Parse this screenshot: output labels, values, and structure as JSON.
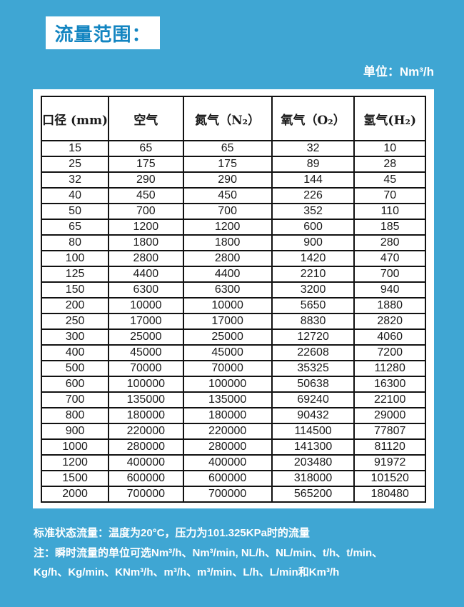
{
  "title": "流量范围：",
  "unit_label": "单位：Nm³/h",
  "table": {
    "headers": [
      "口径 (mm)",
      "空气",
      "氮气（N₂）",
      "氧气（O₂）",
      "氢气(H₂)"
    ],
    "rows": [
      [
        "15",
        "65",
        "65",
        "32",
        "10"
      ],
      [
        "25",
        "175",
        "175",
        "89",
        "28"
      ],
      [
        "32",
        "290",
        "290",
        "144",
        "45"
      ],
      [
        "40",
        "450",
        "450",
        "226",
        "70"
      ],
      [
        "50",
        "700",
        "700",
        "352",
        "110"
      ],
      [
        "65",
        "1200",
        "1200",
        "600",
        "185"
      ],
      [
        "80",
        "1800",
        "1800",
        "900",
        "280"
      ],
      [
        "100",
        "2800",
        "2800",
        "1420",
        "470"
      ],
      [
        "125",
        "4400",
        "4400",
        "2210",
        "700"
      ],
      [
        "150",
        "6300",
        "6300",
        "3200",
        "940"
      ],
      [
        "200",
        "10000",
        "10000",
        "5650",
        "1880"
      ],
      [
        "250",
        "17000",
        "17000",
        "8830",
        "2820"
      ],
      [
        "300",
        "25000",
        "25000",
        "12720",
        "4060"
      ],
      [
        "400",
        "45000",
        "45000",
        "22608",
        "7200"
      ],
      [
        "500",
        "70000",
        "70000",
        "35325",
        "11280"
      ],
      [
        "600",
        "100000",
        "100000",
        "50638",
        "16300"
      ],
      [
        "700",
        "135000",
        "135000",
        "69240",
        "22100"
      ],
      [
        "800",
        "180000",
        "180000",
        "90432",
        "29000"
      ],
      [
        "900",
        "220000",
        "220000",
        "114500",
        "77807"
      ],
      [
        "1000",
        "280000",
        "280000",
        "141300",
        "81120"
      ],
      [
        "1200",
        "400000",
        "400000",
        "203480",
        "91972"
      ],
      [
        "1500",
        "600000",
        "600000",
        "318000",
        "101520"
      ],
      [
        "2000",
        "700000",
        "700000",
        "565200",
        "180480"
      ]
    ]
  },
  "notes": {
    "standard_condition": "标准状态流量：温度为20°C，压力为101.325KPa时的流量",
    "unit_note_line1": "注：瞬时流量的单位可选Nm³/h、Nm³/min, NL/h、NL/min、t/h、t/min、",
    "unit_note_line2": "Kg/h、Kg/min、KNm³/h、m³/h、m³/min、L/h、L/min和Km³/h"
  },
  "colors": {
    "background": "#3fa6d3",
    "title_text": "#1385c1",
    "title_box_background": "#ffffff",
    "table_background": "#ffffff",
    "table_border": "#111111",
    "table_text": "#1a1a1a",
    "note_text": "#ffffff"
  }
}
